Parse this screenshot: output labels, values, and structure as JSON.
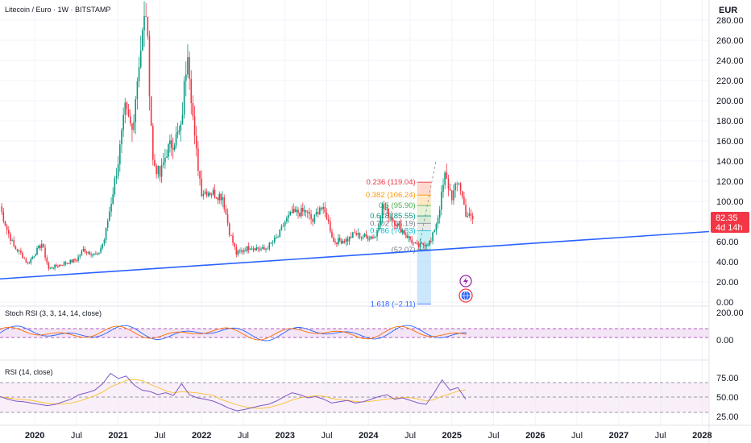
{
  "header": {
    "symbol_title": "Litecoin / Euro · 1W · BITSTAMP",
    "currency": "EUR"
  },
  "price_badge": {
    "price": "82.35",
    "countdown": "4d 14h",
    "color": "#f23645"
  },
  "indicators": {
    "stoch_rsi": {
      "label": "Stoch RSI (3, 3, 14, 14, close)",
      "ticks": [
        "200.00",
        "0.00"
      ]
    },
    "rsi": {
      "label": "RSI (14, close)",
      "ticks": [
        "75.00",
        "50.00",
        "25.00"
      ]
    }
  },
  "time_axis": [
    {
      "label": "2020",
      "bold": true
    },
    {
      "label": "Jul",
      "bold": false
    },
    {
      "label": "2021",
      "bold": true
    },
    {
      "label": "Jul",
      "bold": false
    },
    {
      "label": "2022",
      "bold": true
    },
    {
      "label": "Jul",
      "bold": false
    },
    {
      "label": "2023",
      "bold": true
    },
    {
      "label": "Jul",
      "bold": false
    },
    {
      "label": "2024",
      "bold": true
    },
    {
      "label": "Jul",
      "bold": false
    },
    {
      "label": "2025",
      "bold": true
    },
    {
      "label": "Jul",
      "bold": false
    },
    {
      "label": "2026",
      "bold": true
    },
    {
      "label": "Jul",
      "bold": false
    },
    {
      "label": "2027",
      "bold": true
    },
    {
      "label": "Jul",
      "bold": false
    },
    {
      "label": "2028",
      "bold": true
    }
  ],
  "chart_data": {
    "type": "candlestick",
    "title": "Litecoin / Euro · 1W · BITSTAMP",
    "y_unit": "EUR",
    "y_ticks": [
      0,
      20,
      40,
      60,
      80,
      100,
      120,
      140,
      160,
      180,
      200,
      220,
      240,
      260,
      280
    ],
    "y_range": [
      -4,
      300
    ],
    "x_range": [
      "2019-08",
      "2028-02"
    ],
    "colors": {
      "up": "#089981",
      "down": "#f23645",
      "trendline": "#2962ff"
    },
    "price_path": [
      [
        "2019-08",
        95
      ],
      [
        "2019-09",
        72
      ],
      [
        "2019-10",
        55
      ],
      [
        "2019-11",
        48
      ],
      [
        "2019-12",
        38
      ],
      [
        "2020-02",
        58
      ],
      [
        "2020-03",
        33
      ],
      [
        "2020-05",
        38
      ],
      [
        "2020-07",
        42
      ],
      [
        "2020-08",
        52
      ],
      [
        "2020-10",
        46
      ],
      [
        "2020-11",
        62
      ],
      [
        "2020-12",
        100
      ],
      [
        "2021-01",
        140
      ],
      [
        "2021-02",
        190
      ],
      [
        "2021-03",
        170
      ],
      [
        "2021-04",
        240
      ],
      [
        "2021-05",
        290
      ],
      [
        "2021-06",
        140
      ],
      [
        "2021-07",
        125
      ],
      [
        "2021-08",
        150
      ],
      [
        "2021-10",
        170
      ],
      [
        "2021-11",
        255
      ],
      [
        "2021-12",
        160
      ],
      [
        "2022-01",
        110
      ],
      [
        "2022-02",
        110
      ],
      [
        "2022-04",
        105
      ],
      [
        "2022-05",
        70
      ],
      [
        "2022-06",
        48
      ],
      [
        "2022-08",
        55
      ],
      [
        "2022-10",
        52
      ],
      [
        "2022-11",
        58
      ],
      [
        "2022-12",
        65
      ],
      [
        "2023-01",
        80
      ],
      [
        "2023-02",
        88
      ],
      [
        "2023-04",
        90
      ],
      [
        "2023-05",
        80
      ],
      [
        "2023-06",
        95
      ],
      [
        "2023-07",
        85
      ],
      [
        "2023-08",
        60
      ],
      [
        "2023-10",
        62
      ],
      [
        "2023-11",
        68
      ],
      [
        "2023-12",
        65
      ],
      [
        "2024-02",
        65
      ],
      [
        "2024-03",
        95
      ],
      [
        "2024-05",
        78
      ],
      [
        "2024-07",
        62
      ],
      [
        "2024-08",
        55
      ],
      [
        "2024-10",
        60
      ],
      [
        "2024-11",
        85
      ],
      [
        "2024-12",
        125
      ],
      [
        "2025-01",
        105
      ],
      [
        "2025-02",
        120
      ],
      [
        "2025-03",
        88
      ],
      [
        "2025-04",
        82.35
      ]
    ],
    "trendline": {
      "from": [
        "2019-08",
        23
      ],
      "to": [
        "2028-02",
        70
      ]
    },
    "last_price": 82.35,
    "fibonacci": {
      "levels": [
        {
          "ratio": "0.236",
          "value": 119.04,
          "label": "0.236 (119.04)",
          "color": "#f23645"
        },
        {
          "ratio": "0.382",
          "value": 106.24,
          "label": "0.382 (106.24)",
          "color": "#ff9800"
        },
        {
          "ratio": "0.5",
          "value": 95.9,
          "label": "0.5 (95.90)",
          "color": "#4caf50"
        },
        {
          "ratio": "0.618",
          "value": 85.55,
          "label": "0.618 (85.55)",
          "color": "#089981"
        },
        {
          "ratio": "0.702",
          "value": 78.19,
          "label": "0.702 (78.19)",
          "color": "#787b86"
        },
        {
          "ratio": "0.786",
          "value": 70.83,
          "label": "0.786 (70.83)",
          "color": "#00bcd4"
        },
        {
          "ratio": "1",
          "value": 52.07,
          "label": "(52.07)",
          "color": "#787b86"
        },
        {
          "ratio": "1.618",
          "value": -2.11,
          "label": "1.618 (−2.11)",
          "color": "#2962ff"
        }
      ],
      "x_from": "2024-08",
      "x_to": "2024-10"
    },
    "stoch_rsi": {
      "y_range": [
        0,
        200
      ],
      "band": [
        20,
        80
      ]
    },
    "rsi": {
      "y_range": [
        20,
        95
      ],
      "upper": 70,
      "mid": 50,
      "lower": 30,
      "values": [
        52,
        48,
        45,
        44,
        42,
        40,
        38,
        40,
        44,
        48,
        55,
        58,
        62,
        72,
        88,
        80,
        84,
        70,
        62,
        60,
        55,
        58,
        54,
        72,
        55,
        50,
        48,
        45,
        40,
        34,
        30,
        32,
        35,
        38,
        40,
        45,
        52,
        58,
        55,
        50,
        52,
        48,
        42,
        44,
        46,
        42,
        44,
        48,
        52,
        55,
        48,
        50,
        46,
        42,
        40,
        58,
        78,
        62,
        66,
        48
      ]
    }
  }
}
